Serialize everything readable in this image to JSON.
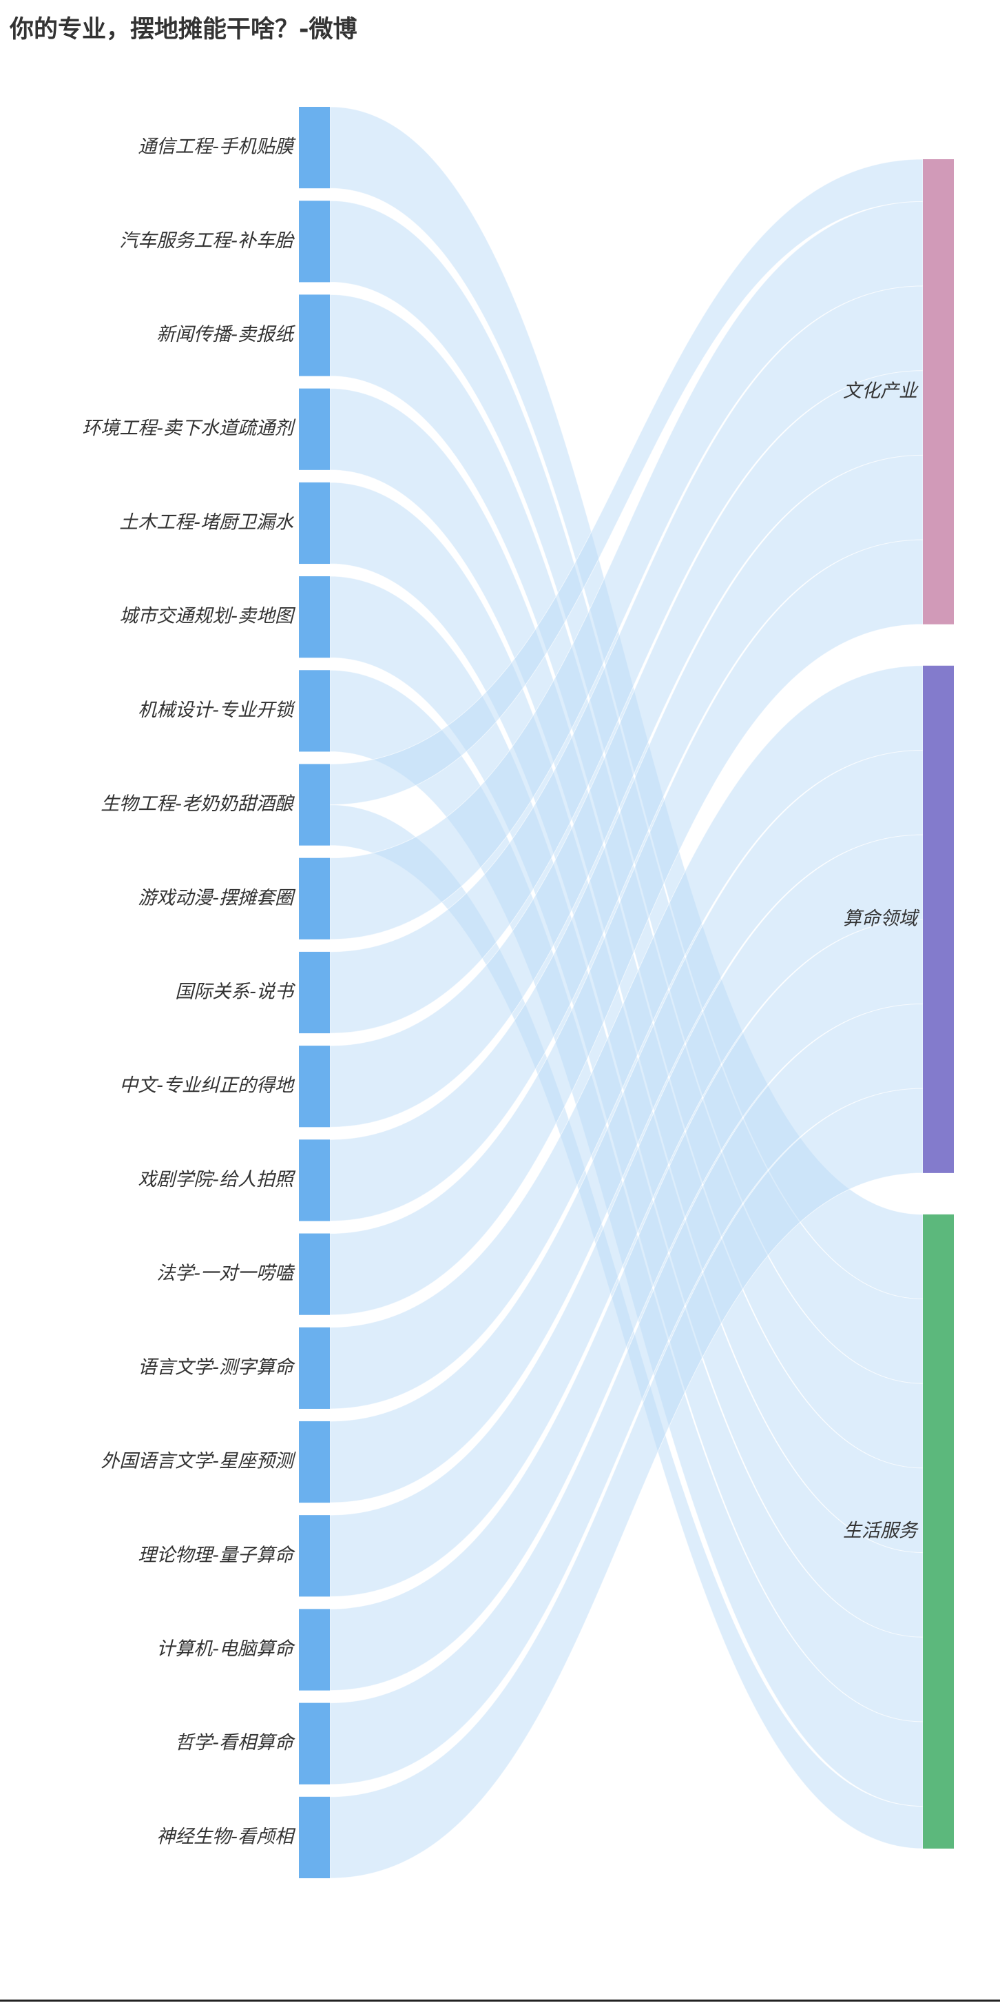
{
  "page": {
    "title": "你的专业，摆地摊能干啥？-微博"
  },
  "chart_data": {
    "type": "sankey",
    "title": "你的专业，摆地摊能干啥？-微博",
    "sources": [
      "通信工程-手机贴膜",
      "汽车服务工程-补车胎",
      "新闻传播-卖报纸",
      "环境工程-卖下水道疏通剂",
      "土木工程-堵厨卫漏水",
      "城市交通规划-卖地图",
      "机械设计-专业开锁",
      "生物工程-老奶奶甜酒酿",
      "游戏动漫-摆摊套圈",
      "国际关系-说书",
      "中文-专业纠正的得地",
      "戏剧学院-给人拍照",
      "法学-一对一唠嗑",
      "语言文学-测字算命",
      "外国语言文学-星座预测",
      "理论物理-量子算命",
      "计算机-电脑算命",
      "哲学-看相算命",
      "神经生物-看颅相"
    ],
    "targets": [
      {
        "name": "文化产业",
        "color": "#d19ab8"
      },
      {
        "name": "算命领域",
        "color": "#837bcc"
      },
      {
        "name": "生活服务",
        "color": "#5cb87c"
      }
    ],
    "links": [
      {
        "source": "通信工程-手机贴膜",
        "target": "生活服务",
        "value": 1
      },
      {
        "source": "汽车服务工程-补车胎",
        "target": "生活服务",
        "value": 1
      },
      {
        "source": "新闻传播-卖报纸",
        "target": "生活服务",
        "value": 1
      },
      {
        "source": "环境工程-卖下水道疏通剂",
        "target": "生活服务",
        "value": 1
      },
      {
        "source": "土木工程-堵厨卫漏水",
        "target": "生活服务",
        "value": 1
      },
      {
        "source": "城市交通规划-卖地图",
        "target": "生活服务",
        "value": 1
      },
      {
        "source": "机械设计-专业开锁",
        "target": "生活服务",
        "value": 1
      },
      {
        "source": "生物工程-老奶奶甜酒酿",
        "target": "文化产业",
        "value": 0.5
      },
      {
        "source": "生物工程-老奶奶甜酒酿",
        "target": "生活服务",
        "value": 0.5
      },
      {
        "source": "游戏动漫-摆摊套圈",
        "target": "文化产业",
        "value": 1
      },
      {
        "source": "国际关系-说书",
        "target": "文化产业",
        "value": 1
      },
      {
        "source": "中文-专业纠正的得地",
        "target": "文化产业",
        "value": 1
      },
      {
        "source": "戏剧学院-给人拍照",
        "target": "文化产业",
        "value": 1
      },
      {
        "source": "法学-一对一唠嗑",
        "target": "文化产业",
        "value": 1
      },
      {
        "source": "语言文学-测字算命",
        "target": "算命领域",
        "value": 1
      },
      {
        "source": "外国语言文学-星座预测",
        "target": "算命领域",
        "value": 1
      },
      {
        "source": "理论物理-量子算命",
        "target": "算命领域",
        "value": 1
      },
      {
        "source": "计算机-电脑算命",
        "target": "算命领域",
        "value": 1
      },
      {
        "source": "哲学-看相算命",
        "target": "算命领域",
        "value": 1
      },
      {
        "source": "神经生物-看颅相",
        "target": "算命领域",
        "value": 1
      }
    ],
    "colors": {
      "source_node": "#6ab0ee",
      "link": "#bcdcf7"
    }
  }
}
